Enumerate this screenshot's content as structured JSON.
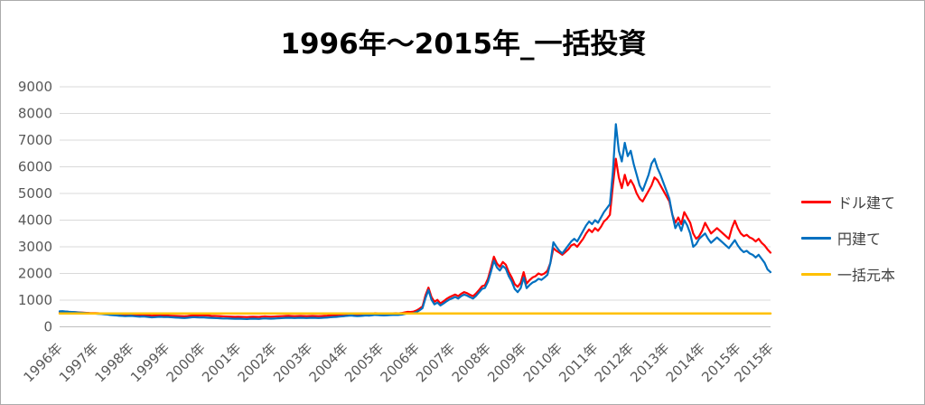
{
  "chart_data": {
    "type": "line",
    "title": "1996年〜2015年_一括投資",
    "xlabel": "",
    "ylabel": "",
    "ylim": [
      0,
      9000
    ],
    "ytick_step": 1000,
    "yticks": [
      "0",
      "1000",
      "2000",
      "3000",
      "4000",
      "5000",
      "6000",
      "7000",
      "8000",
      "9000"
    ],
    "xticks": [
      "1996年",
      "1997年",
      "1998年",
      "1999年",
      "2000年",
      "2001年",
      "2002年",
      "2003年",
      "2004年",
      "2005年",
      "2006年",
      "2007年",
      "2008年",
      "2009年",
      "2010年",
      "2011年",
      "2012年",
      "2013年",
      "2014年",
      "2015年",
      "2015年"
    ],
    "x_start_year": 1996,
    "points_per_year": 12,
    "grid": true,
    "legend_position": "right",
    "colors": {
      "dollar": "#FF0000",
      "yen": "#0070C0",
      "principal": "#FFC000",
      "gridline": "#D9D9D9",
      "axis_line": "#BFBFBF",
      "tick_text": "#595959"
    },
    "series": [
      {
        "name": "ドル建て",
        "color": "#FF0000",
        "values": [
          560,
          568,
          572,
          560,
          552,
          548,
          542,
          536,
          530,
          524,
          518,
          515,
          512,
          508,
          502,
          498,
          492,
          470,
          462,
          455,
          448,
          445,
          442,
          448,
          452,
          445,
          438,
          432,
          442,
          436,
          426,
          418,
          424,
          430,
          436,
          428,
          424,
          418,
          412,
          408,
          402,
          398,
          394,
          402,
          415,
          426,
          420,
          428,
          434,
          426,
          419,
          412,
          408,
          402,
          398,
          392,
          388,
          382,
          378,
          374,
          380,
          374,
          368,
          364,
          374,
          380,
          374,
          368,
          384,
          390,
          384,
          379,
          384,
          390,
          396,
          401,
          406,
          411,
          405,
          399,
          404,
          409,
          404,
          399,
          404,
          409,
          404,
          399,
          405,
          411,
          416,
          426,
          436,
          441,
          451,
          461,
          471,
          481,
          491,
          476,
          466,
          471,
          481,
          491,
          486,
          496,
          511,
          504,
          496,
          491,
          496,
          501,
          506,
          511,
          506,
          516,
          541,
          561,
          556,
          571,
          612,
          680,
          760,
          1180,
          1470,
          1120,
          940,
          1010,
          880,
          950,
          1040,
          1110,
          1160,
          1210,
          1150,
          1240,
          1300,
          1260,
          1200,
          1150,
          1250,
          1380,
          1520,
          1560,
          1800,
          2200,
          2630,
          2380,
          2250,
          2430,
          2330,
          2050,
          1850,
          1600,
          1500,
          1650,
          2050,
          1620,
          1750,
          1850,
          1900,
          2000,
          1950,
          2000,
          2100,
          2400,
          2950,
          2850,
          2780,
          2700,
          2800,
          2900,
          3050,
          3100,
          3000,
          3150,
          3300,
          3500,
          3650,
          3550,
          3700,
          3600,
          3750,
          3950,
          4050,
          4200,
          5300,
          6300,
          5600,
          5200,
          5700,
          5300,
          5500,
          5300,
          5000,
          4800,
          4700,
          4900,
          5100,
          5300,
          5600,
          5500,
          5300,
          5100,
          4900,
          4700,
          4200,
          3900,
          4100,
          3850,
          4300,
          4100,
          3900,
          3500,
          3300,
          3400,
          3600,
          3900,
          3700,
          3500,
          3600,
          3700,
          3600,
          3500,
          3400,
          3300,
          3700,
          3980,
          3700,
          3500,
          3400,
          3450,
          3350,
          3300,
          3200,
          3300,
          3150,
          3050,
          2900,
          2780
        ]
      },
      {
        "name": "円建て",
        "color": "#0070C0",
        "values": [
          580,
          585,
          575,
          565,
          558,
          550,
          540,
          530,
          522,
          515,
          508,
          500,
          495,
          488,
          480,
          470,
          460,
          445,
          435,
          425,
          415,
          408,
          400,
          405,
          410,
          400,
          390,
          382,
          390,
          380,
          368,
          356,
          362,
          370,
          376,
          366,
          370,
          362,
          355,
          348,
          342,
          336,
          330,
          340,
          352,
          362,
          356,
          350,
          356,
          348,
          340,
          334,
          330,
          324,
          318,
          312,
          316,
          310,
          306,
          300,
          306,
          300,
          294,
          290,
          300,
          306,
          300,
          294,
          310,
          316,
          310,
          304,
          310,
          316,
          322,
          328,
          334,
          340,
          334,
          328,
          334,
          340,
          334,
          328,
          334,
          340,
          334,
          328,
          334,
          342,
          348,
          358,
          368,
          374,
          384,
          394,
          404,
          414,
          424,
          410,
          400,
          406,
          416,
          426,
          420,
          430,
          446,
          440,
          432,
          426,
          432,
          438,
          444,
          450,
          446,
          456,
          482,
          502,
          498,
          515,
          555,
          620,
          700,
          1080,
          1380,
          1020,
          840,
          910,
          800,
          870,
          950,
          1020,
          1070,
          1120,
          1060,
          1150,
          1210,
          1170,
          1110,
          1060,
          1160,
          1290,
          1420,
          1460,
          1690,
          2060,
          2480,
          2230,
          2110,
          2280,
          2180,
          1900,
          1700,
          1420,
          1300,
          1450,
          1850,
          1450,
          1570,
          1660,
          1710,
          1800,
          1760,
          1850,
          1950,
          2400,
          3170,
          3000,
          2850,
          2750,
          2900,
          3050,
          3200,
          3300,
          3200,
          3400,
          3600,
          3800,
          3950,
          3850,
          4000,
          3900,
          4100,
          4300,
          4450,
          4600,
          5800,
          7600,
          6600,
          6200,
          6900,
          6400,
          6600,
          6100,
          5700,
          5300,
          5100,
          5400,
          5700,
          6120,
          6300,
          5950,
          5700,
          5400,
          5100,
          4800,
          4200,
          3700,
          3900,
          3600,
          4000,
          3800,
          3500,
          3000,
          3100,
          3300,
          3400,
          3500,
          3300,
          3150,
          3250,
          3350,
          3250,
          3150,
          3050,
          2950,
          3100,
          3250,
          3050,
          2900,
          2800,
          2850,
          2750,
          2700,
          2600,
          2700,
          2550,
          2400,
          2150,
          2050
        ]
      },
      {
        "name": "一括元本",
        "color": "#FFC000",
        "constant": 500
      }
    ]
  }
}
